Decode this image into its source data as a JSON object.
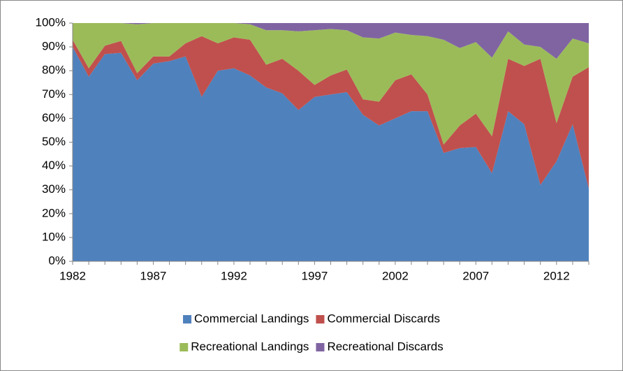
{
  "chart_data": {
    "type": "stacked_area_percent",
    "x": [
      1982,
      1983,
      1984,
      1985,
      1986,
      1987,
      1988,
      1989,
      1990,
      1991,
      1992,
      1993,
      1994,
      1995,
      1996,
      1997,
      1998,
      1999,
      2000,
      2001,
      2002,
      2003,
      2004,
      2005,
      2006,
      2007,
      2008,
      2009,
      2010,
      2011,
      2012,
      2013,
      2014
    ],
    "series": [
      {
        "name": "Commercial Landings",
        "color": "#4f81bd",
        "values": [
          90,
          77.5,
          87,
          87.5,
          76,
          83,
          84,
          86,
          69,
          80,
          81,
          78,
          73,
          70.5,
          63.5,
          69,
          70,
          71,
          61.5,
          57,
          60,
          63,
          63,
          45.5,
          47.5,
          48,
          37,
          63,
          57.5,
          32,
          42,
          57.5,
          30.5
        ]
      },
      {
        "name": "Commercial Discards",
        "color": "#c0504d",
        "values": [
          3,
          3.5,
          3.5,
          5,
          3,
          3,
          2,
          5.5,
          25.5,
          11.5,
          13,
          15,
          9.5,
          14.5,
          16.5,
          5,
          8,
          9.5,
          6.5,
          10,
          16,
          15.5,
          7,
          3.5,
          9.5,
          14,
          15.5,
          22,
          24.5,
          53,
          16,
          20,
          51
        ]
      },
      {
        "name": "Recreational Landings",
        "color": "#9bbb59",
        "values": [
          7,
          19,
          9.5,
          7.5,
          20.5,
          14,
          14,
          8.5,
          5.5,
          8.5,
          6,
          6.5,
          14.5,
          12,
          16.5,
          23,
          19.5,
          16.5,
          26,
          26.5,
          20,
          16.5,
          24.5,
          44,
          32.5,
          30,
          33,
          11.5,
          9,
          5,
          27,
          16,
          10
        ]
      },
      {
        "name": "Recreational Discards",
        "color": "#8064a2",
        "values": [
          0,
          0,
          0,
          0,
          0.5,
          0,
          0,
          0,
          0,
          0,
          0,
          0.5,
          3,
          3,
          3.5,
          3,
          2.5,
          3,
          6,
          6.5,
          4,
          5,
          5.5,
          7,
          10.5,
          8,
          14.5,
          3.5,
          9,
          10,
          15,
          6.5,
          8.5
        ]
      }
    ],
    "xlim": [
      1982,
      2014
    ],
    "xticks": [
      1982,
      1987,
      1992,
      1997,
      2002,
      2007,
      2012
    ],
    "ylim": [
      0,
      100
    ],
    "yticks": [
      {
        "value": 0,
        "label": "0%"
      },
      {
        "value": 10,
        "label": "10%"
      },
      {
        "value": 20,
        "label": "20%"
      },
      {
        "value": 30,
        "label": "30%"
      },
      {
        "value": 40,
        "label": "40%"
      },
      {
        "value": 50,
        "label": "50%"
      },
      {
        "value": 60,
        "label": "60%"
      },
      {
        "value": 70,
        "label": "70%"
      },
      {
        "value": 80,
        "label": "80%"
      },
      {
        "value": 90,
        "label": "90%"
      },
      {
        "value": 100,
        "label": "100%"
      }
    ]
  }
}
